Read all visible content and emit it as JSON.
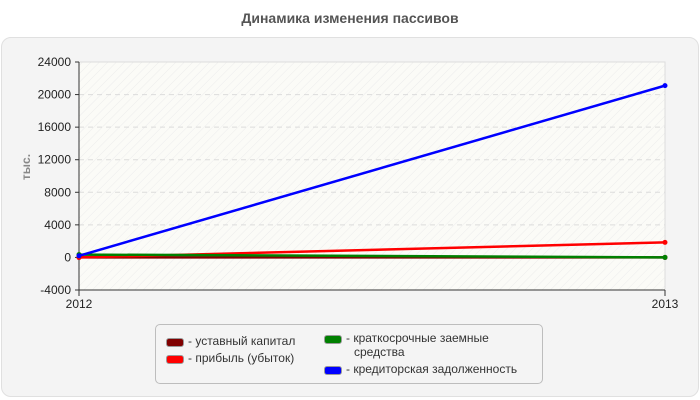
{
  "chart_data": {
    "type": "line",
    "title": "Динамика изменения пассивов",
    "xlabel": "",
    "ylabel": "тыс.",
    "x": [
      "2012",
      "2013"
    ],
    "ylim": [
      -4000,
      24000
    ],
    "yticks": [
      -4000,
      0,
      4000,
      8000,
      12000,
      16000,
      20000,
      24000
    ],
    "grid": true,
    "legend_position": "bottom",
    "series": [
      {
        "name": "уставный капитал",
        "color": "#800000",
        "values": [
          0,
          0
        ]
      },
      {
        "name": "прибыль (убыток)",
        "color": "#ff0000",
        "values": [
          0,
          1850
        ]
      },
      {
        "name": "краткосрочные заемные средства",
        "color": "#008000",
        "values": [
          350,
          0
        ]
      },
      {
        "name": "кредиторская задолженность",
        "color": "#0000ff",
        "values": [
          200,
          21100
        ]
      }
    ]
  },
  "chart": {
    "title": "Динамика изменения пассивов",
    "ylabel": "тыс.",
    "xticks": [
      "2012",
      "2013"
    ],
    "yticks": [
      "24000",
      "20000",
      "16000",
      "12000",
      "8000",
      "4000",
      "0",
      "-4000"
    ]
  },
  "legend": {
    "items": [
      {
        "label": "- уставный капитал",
        "color": "#800000"
      },
      {
        "label": "- прибыль (убыток)",
        "color": "#ff0000"
      },
      {
        "label_line1": "- краткосрочные заемные",
        "label_line2": "средства",
        "color": "#008000"
      },
      {
        "label": "- кредиторская задолженность",
        "color": "#0000ff"
      }
    ]
  }
}
